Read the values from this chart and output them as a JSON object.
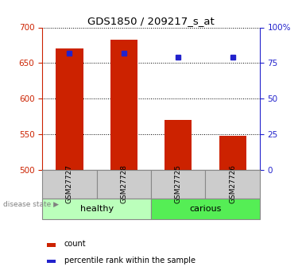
{
  "title": "GDS1850 / 209217_s_at",
  "samples": [
    "GSM27727",
    "GSM27728",
    "GSM27725",
    "GSM27726"
  ],
  "counts": [
    670,
    683,
    570,
    548
  ],
  "percentiles": [
    82,
    82,
    79,
    79
  ],
  "groups": [
    "healthy",
    "healthy",
    "carious",
    "carious"
  ],
  "bar_color": "#CC2200",
  "dot_color": "#2222CC",
  "ylim_left": [
    500,
    700
  ],
  "ylim_right": [
    0,
    100
  ],
  "yticks_left": [
    500,
    550,
    600,
    650,
    700
  ],
  "yticks_right": [
    0,
    25,
    50,
    75,
    100
  ],
  "ytick_labels_right": [
    "0",
    "25",
    "50",
    "75",
    "100%"
  ],
  "healthy_color": "#BBFFBB",
  "carious_color": "#55EE55",
  "left_tick_color": "#CC2200",
  "right_tick_color": "#2222CC",
  "xlabel_area_color": "#CCCCCC",
  "legend_count_color": "#CC2200",
  "legend_pct_color": "#2222CC",
  "disease_state_label": "disease state",
  "legend_count_label": "count",
  "legend_pct_label": "percentile rank within the sample",
  "bar_width": 0.5,
  "figwidth": 3.8,
  "figheight": 3.45,
  "dpi": 100
}
